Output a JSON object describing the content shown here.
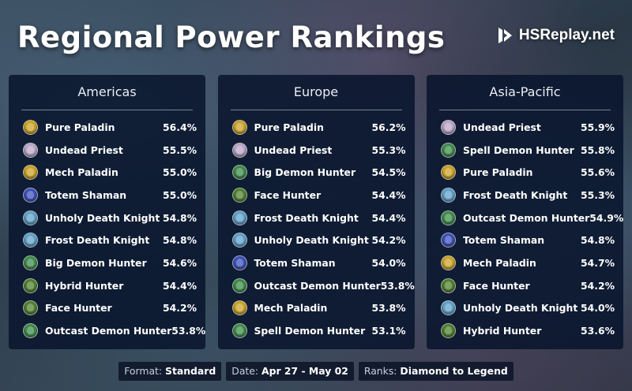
{
  "header": {
    "title": "Regional Power Rankings",
    "brand": "HSReplay.net",
    "brand_icon": "hsreplay-logo-icon"
  },
  "class_colors": {
    "paladin": "#c9a227",
    "priest": "#b9a6c8",
    "shaman": "#3b4fb8",
    "death-knight": "#5fa0c8",
    "demon-hunter": "#3e8a4a",
    "hunter": "#4f7f2f"
  },
  "regions": [
    {
      "name": "Americas",
      "decks": [
        {
          "name": "Pure Paladin",
          "winrate": "56.4%",
          "class": "paladin"
        },
        {
          "name": "Undead Priest",
          "winrate": "55.5%",
          "class": "priest"
        },
        {
          "name": "Mech Paladin",
          "winrate": "55.0%",
          "class": "paladin"
        },
        {
          "name": "Totem Shaman",
          "winrate": "55.0%",
          "class": "shaman"
        },
        {
          "name": "Unholy Death Knight",
          "winrate": "54.8%",
          "class": "death-knight"
        },
        {
          "name": "Frost Death Knight",
          "winrate": "54.8%",
          "class": "death-knight"
        },
        {
          "name": "Big Demon Hunter",
          "winrate": "54.6%",
          "class": "demon-hunter"
        },
        {
          "name": "Hybrid Hunter",
          "winrate": "54.4%",
          "class": "hunter"
        },
        {
          "name": "Face Hunter",
          "winrate": "54.2%",
          "class": "hunter"
        },
        {
          "name": "Outcast Demon Hunter",
          "winrate": "53.8%",
          "class": "demon-hunter"
        }
      ]
    },
    {
      "name": "Europe",
      "decks": [
        {
          "name": "Pure Paladin",
          "winrate": "56.2%",
          "class": "paladin"
        },
        {
          "name": "Undead Priest",
          "winrate": "55.3%",
          "class": "priest"
        },
        {
          "name": "Big Demon Hunter",
          "winrate": "54.5%",
          "class": "demon-hunter"
        },
        {
          "name": "Face Hunter",
          "winrate": "54.4%",
          "class": "hunter"
        },
        {
          "name": "Frost Death Knight",
          "winrate": "54.4%",
          "class": "death-knight"
        },
        {
          "name": "Unholy Death Knight",
          "winrate": "54.2%",
          "class": "death-knight"
        },
        {
          "name": "Totem Shaman",
          "winrate": "54.0%",
          "class": "shaman"
        },
        {
          "name": "Outcast Demon Hunter",
          "winrate": "53.8%",
          "class": "demon-hunter"
        },
        {
          "name": "Mech Paladin",
          "winrate": "53.8%",
          "class": "paladin"
        },
        {
          "name": "Spell Demon Hunter",
          "winrate": "53.1%",
          "class": "demon-hunter"
        }
      ]
    },
    {
      "name": "Asia-Pacific",
      "decks": [
        {
          "name": "Undead Priest",
          "winrate": "55.9%",
          "class": "priest"
        },
        {
          "name": "Spell Demon Hunter",
          "winrate": "55.8%",
          "class": "demon-hunter"
        },
        {
          "name": "Pure Paladin",
          "winrate": "55.6%",
          "class": "paladin"
        },
        {
          "name": "Frost Death Knight",
          "winrate": "55.3%",
          "class": "death-knight"
        },
        {
          "name": "Outcast Demon Hunter",
          "winrate": "54.9%",
          "class": "demon-hunter"
        },
        {
          "name": "Totem Shaman",
          "winrate": "54.8%",
          "class": "shaman"
        },
        {
          "name": "Mech Paladin",
          "winrate": "54.7%",
          "class": "paladin"
        },
        {
          "name": "Face Hunter",
          "winrate": "54.2%",
          "class": "hunter"
        },
        {
          "name": "Unholy Death Knight",
          "winrate": "54.0%",
          "class": "death-knight"
        },
        {
          "name": "Hybrid Hunter",
          "winrate": "53.6%",
          "class": "hunter"
        }
      ]
    }
  ],
  "footer": {
    "format_label": "Format:",
    "format_value": "Standard",
    "date_label": "Date:",
    "date_value": "Apr 27 - May 02",
    "ranks_label": "Ranks:",
    "ranks_value": "Diamond to Legend"
  }
}
